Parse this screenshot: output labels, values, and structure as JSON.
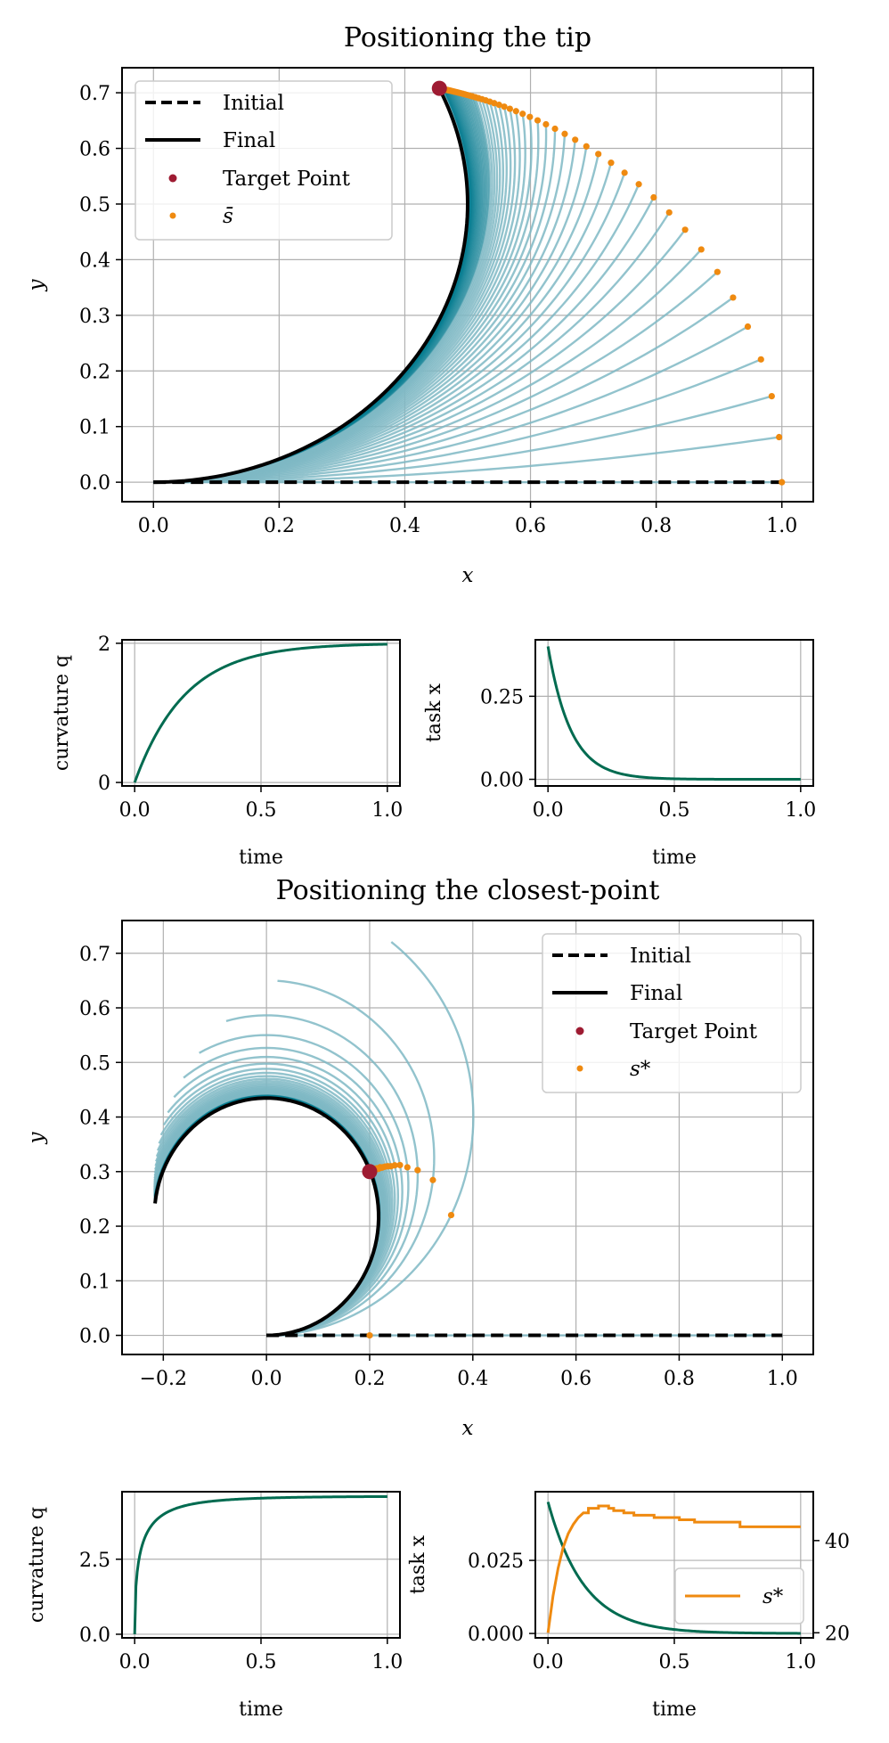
{
  "colors": {
    "teal_curve": "#7fb8c4",
    "teal_dense": "#0a7f92",
    "green": "#006b50",
    "orange": "#ef8a10",
    "target": "#9e1b32",
    "black": "#000000",
    "grid": "#b0b0b0"
  },
  "chart_data": [
    {
      "id": "tip-main",
      "type": "line",
      "title": "Positioning the tip",
      "xlabel": "x",
      "ylabel": "y",
      "xlim": [
        -0.05,
        1.05
      ],
      "ylim": [
        -0.035,
        0.745
      ],
      "xticks": [
        0.0,
        0.2,
        0.4,
        0.6,
        0.8,
        1.0
      ],
      "xtick_labels": [
        "0.0",
        "0.2",
        "0.4",
        "0.6",
        "0.8",
        "1.0"
      ],
      "yticks": [
        0.0,
        0.1,
        0.2,
        0.3,
        0.4,
        0.5,
        0.6,
        0.7
      ],
      "ytick_labels": [
        "0.0",
        "0.1",
        "0.2",
        "0.3",
        "0.4",
        "0.5",
        "0.6",
        "0.7"
      ],
      "grid": true,
      "legend_position": "top-left",
      "legend": [
        "Initial",
        "Final",
        "Target Point",
        "s̄"
      ],
      "rod_length": 1.0,
      "curvature_final": 2.0,
      "curvature_rate": 5.0,
      "curvature_mode": "exp",
      "n_rods": 60,
      "target_point": [
        0.455,
        0.708
      ],
      "marker_series": "s-bar at rod tip (arc length = 1)"
    },
    {
      "id": "tip-curv",
      "type": "line",
      "xlabel": "time",
      "ylabel": "curvature q",
      "xlim": [
        -0.05,
        1.05
      ],
      "ylim": [
        -0.05,
        2.05
      ],
      "xticks": [
        0.0,
        0.5,
        1.0
      ],
      "xtick_labels": [
        "0.0",
        "0.5",
        "1.0"
      ],
      "yticks": [
        0,
        2
      ],
      "ytick_labels": [
        "0",
        "2"
      ],
      "grid": true,
      "series": [
        {
          "name": "curvature q",
          "function": "2(1 - e^(-5t))",
          "color": "green"
        }
      ]
    },
    {
      "id": "tip-task",
      "type": "line",
      "xlabel": "time",
      "ylabel": "task x",
      "xlim": [
        -0.05,
        1.05
      ],
      "ylim": [
        -0.02,
        0.42
      ],
      "xticks": [
        0.0,
        0.5,
        1.0
      ],
      "xtick_labels": [
        "0.0",
        "0.5",
        "1.0"
      ],
      "yticks": [
        0.0,
        0.25
      ],
      "ytick_labels": [
        "0.00",
        "0.25"
      ],
      "grid": true,
      "series": [
        {
          "name": "task x",
          "function": "0.4 e^(-11t)",
          "color": "green"
        }
      ]
    },
    {
      "id": "cp-main",
      "type": "line",
      "title": "Positioning the closest-point",
      "xlabel": "x",
      "ylabel": "y",
      "xlim": [
        -0.28,
        1.06
      ],
      "ylim": [
        -0.035,
        0.76
      ],
      "xticks": [
        -0.2,
        0.0,
        0.2,
        0.4,
        0.6,
        0.8,
        1.0
      ],
      "xtick_labels": [
        "−0.2",
        "0.0",
        "0.2",
        "0.4",
        "0.6",
        "0.8",
        "1.0"
      ],
      "yticks": [
        0.0,
        0.1,
        0.2,
        0.3,
        0.4,
        0.5,
        0.6,
        0.7
      ],
      "ytick_labels": [
        "0.0",
        "0.1",
        "0.2",
        "0.3",
        "0.4",
        "0.5",
        "0.6",
        "0.7"
      ],
      "grid": true,
      "legend_position": "top-right",
      "legend": [
        "Initial",
        "Final",
        "Target Point",
        "s*"
      ],
      "rod_length": 1.0,
      "curvature_final": 4.6,
      "curvature_rate": 6.0,
      "curvature_mode": "sqrt",
      "n_rods": 60,
      "target_point": [
        0.2,
        0.3
      ],
      "marker_series": "s* closest point on each rod to the target"
    },
    {
      "id": "cp-curv",
      "type": "line",
      "xlabel": "time",
      "ylabel": "curvature q",
      "xlim": [
        -0.05,
        1.05
      ],
      "ylim": [
        -0.12,
        4.75
      ],
      "xticks": [
        0.0,
        0.5,
        1.0
      ],
      "xtick_labels": [
        "0.0",
        "0.5",
        "1.0"
      ],
      "yticks": [
        0.0,
        2.5
      ],
      "ytick_labels": [
        "0.0",
        "2.5"
      ],
      "grid": true,
      "series": [
        {
          "name": "curvature q",
          "function": "4.6(1 - e^(-6 sqrt t))",
          "color": "green"
        }
      ]
    },
    {
      "id": "cp-task",
      "type": "line",
      "xlabel": "time",
      "ylabel": "task x",
      "xlim": [
        -0.05,
        1.05
      ],
      "ylim": [
        -0.0015,
        0.0485
      ],
      "xticks": [
        0.0,
        0.5,
        1.0
      ],
      "xtick_labels": [
        "0.0",
        "0.5",
        "1.0"
      ],
      "yticks": [
        0.0,
        0.025
      ],
      "ytick_labels": [
        "0.000",
        "0.025"
      ],
      "y2lim": [
        18.9,
        50.6
      ],
      "y2ticks": [
        20,
        40
      ],
      "y2tick_labels": [
        "20",
        "40"
      ],
      "grid": true,
      "legend_position": "lower-right",
      "legend": [
        "s*"
      ],
      "series": [
        {
          "name": "task x",
          "function": "0.045 e^(-7t)",
          "color": "green"
        },
        {
          "name": "s*",
          "axis": "right",
          "color": "orange",
          "x": [
            0.0,
            0.02,
            0.04,
            0.06,
            0.08,
            0.1,
            0.12,
            0.14,
            0.16,
            0.2,
            0.24,
            0.26,
            0.3,
            0.34,
            0.42,
            0.52,
            0.58,
            0.76,
            1.0
          ],
          "y": [
            20.0,
            28.0,
            34.0,
            38.5,
            41.5,
            43.5,
            45.0,
            46.0,
            47.0,
            47.5,
            47.0,
            46.5,
            46.0,
            45.5,
            45.0,
            44.5,
            44.0,
            43.0,
            43.0
          ]
        }
      ]
    }
  ]
}
